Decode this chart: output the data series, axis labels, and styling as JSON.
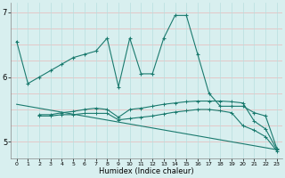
{
  "line1_x": [
    0,
    1,
    2,
    3,
    4,
    5,
    6,
    7,
    8,
    9,
    10,
    11,
    12,
    13,
    14,
    15,
    16,
    17,
    18,
    19,
    20,
    21,
    22,
    23
  ],
  "line1_y": [
    6.55,
    5.9,
    6.0,
    6.1,
    6.2,
    6.3,
    6.35,
    6.4,
    6.6,
    5.85,
    6.6,
    6.05,
    6.05,
    6.6,
    6.95,
    6.95,
    6.35,
    5.75,
    5.55,
    5.55,
    5.55,
    5.45,
    5.4,
    4.9
  ],
  "line2_x": [
    2,
    3,
    4,
    5,
    6,
    7,
    8,
    9,
    10,
    11,
    12,
    13,
    14,
    15,
    16,
    17,
    18,
    19,
    20,
    21,
    22,
    23
  ],
  "line2_y": [
    5.42,
    5.42,
    5.45,
    5.47,
    5.5,
    5.52,
    5.5,
    5.38,
    5.5,
    5.52,
    5.55,
    5.58,
    5.6,
    5.62,
    5.63,
    5.63,
    5.63,
    5.62,
    5.6,
    5.32,
    5.2,
    4.88
  ],
  "line3_x": [
    2,
    3,
    4,
    5,
    6,
    7,
    8,
    9,
    10,
    11,
    12,
    13,
    14,
    15,
    16,
    17,
    18,
    19,
    20,
    21,
    22,
    23
  ],
  "line3_y": [
    5.4,
    5.4,
    5.42,
    5.42,
    5.44,
    5.44,
    5.44,
    5.34,
    5.36,
    5.38,
    5.4,
    5.43,
    5.46,
    5.48,
    5.5,
    5.5,
    5.48,
    5.45,
    5.25,
    5.18,
    5.08,
    4.86
  ],
  "line4_x": [
    0,
    23
  ],
  "line4_y": [
    5.58,
    4.88
  ],
  "color": "#1a7a6e",
  "bg_color": "#d8efef",
  "xlabel": "Humidex (Indice chaleur)",
  "ylim": [
    4.75,
    7.15
  ],
  "xlim": [
    -0.5,
    23.5
  ],
  "yticks": [
    5,
    6,
    7
  ],
  "xticks": [
    0,
    1,
    2,
    3,
    4,
    5,
    6,
    7,
    8,
    9,
    10,
    11,
    12,
    13,
    14,
    15,
    16,
    17,
    18,
    19,
    20,
    21,
    22,
    23
  ]
}
